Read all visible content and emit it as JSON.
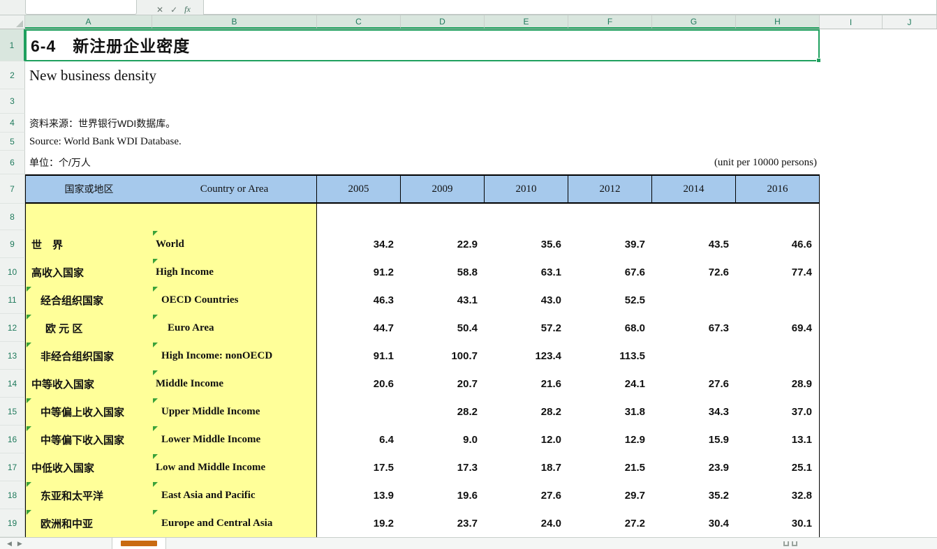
{
  "colors": {
    "selection_green": "#1FA05E",
    "header_blue": "#A6C9EC",
    "label_yellow": "#FFFF99",
    "flag_green": "#3AA23A",
    "header_text_teal": "#1F7A5C",
    "tab_accent_orange": "#C96A11"
  },
  "formula_bar": {
    "name_box_value": "",
    "cancel_icon": "✕",
    "confirm_icon": "✓",
    "fx_icon": "fx"
  },
  "grid": {
    "column_headers": [
      "A",
      "B",
      "C",
      "D",
      "E",
      "F",
      "G",
      "H",
      "I",
      "J"
    ],
    "row_numbers": [
      "1",
      "2",
      "3",
      "4",
      "5",
      "6",
      "7",
      "8",
      "9",
      "10",
      "11",
      "12",
      "13",
      "14",
      "15",
      "16",
      "17",
      "18",
      "19"
    ]
  },
  "doc": {
    "title_cn": "6-4　新注册企业密度",
    "title_en": "New business density",
    "source_cn": "资料来源：世界银行WDI数据库。",
    "source_en": "Source: World Bank WDI Database.",
    "unit_cn": "单位：个/万人",
    "unit_en": "(unit per 10000 persons)"
  },
  "table": {
    "header": {
      "country_cn": "国家或地区",
      "country_en": "Country or Area",
      "years": [
        "2005",
        "2009",
        "2010",
        "2012",
        "2014",
        "2016"
      ]
    },
    "rows": [
      {
        "cn": "世　界",
        "en": "World",
        "indent": 0,
        "flag_a": false,
        "flag_b": true,
        "values": [
          "34.2",
          "22.9",
          "35.6",
          "39.7",
          "43.5",
          "46.6"
        ]
      },
      {
        "cn": "高收入国家",
        "en": "High Income",
        "indent": 0,
        "flag_a": false,
        "flag_b": true,
        "values": [
          "91.2",
          "58.8",
          "63.1",
          "67.6",
          "72.6",
          "77.4"
        ]
      },
      {
        "cn": "经合组织国家",
        "en": "OECD Countries",
        "indent": 1,
        "flag_a": true,
        "flag_b": true,
        "values": [
          "46.3",
          "43.1",
          "43.0",
          "52.5",
          "",
          ""
        ]
      },
      {
        "cn": "欧 元 区",
        "en": "Euro Area",
        "indent": 2,
        "flag_a": true,
        "flag_b": true,
        "values": [
          "44.7",
          "50.4",
          "57.2",
          "68.0",
          "67.3",
          "69.4"
        ]
      },
      {
        "cn": "非经合组织国家",
        "en": "High Income: nonOECD",
        "indent": 1,
        "flag_a": true,
        "flag_b": true,
        "values": [
          "91.1",
          "100.7",
          "123.4",
          "113.5",
          "",
          ""
        ]
      },
      {
        "cn": "中等收入国家",
        "en": "Middle Income",
        "indent": 0,
        "flag_a": false,
        "flag_b": true,
        "values": [
          "20.6",
          "20.7",
          "21.6",
          "24.1",
          "27.6",
          "28.9"
        ]
      },
      {
        "cn": "中等偏上收入国家",
        "en": "Upper Middle Income",
        "indent": 1,
        "flag_a": true,
        "flag_b": true,
        "values": [
          "",
          "28.2",
          "28.2",
          "31.8",
          "34.3",
          "37.0"
        ]
      },
      {
        "cn": "中等偏下收入国家",
        "en": "Lower Middle Income",
        "indent": 1,
        "flag_a": true,
        "flag_b": true,
        "values": [
          "6.4",
          "9.0",
          "12.0",
          "12.9",
          "15.9",
          "13.1"
        ]
      },
      {
        "cn": "中低收入国家",
        "en": "Low and Middle Income",
        "indent": 0,
        "flag_a": false,
        "flag_b": true,
        "values": [
          "17.5",
          "17.3",
          "18.7",
          "21.5",
          "23.9",
          "25.1"
        ]
      },
      {
        "cn": "东亚和太平洋",
        "en": "East Asia and Pacific",
        "indent": 1,
        "flag_a": true,
        "flag_b": true,
        "values": [
          "13.9",
          "19.6",
          "27.6",
          "29.7",
          "35.2",
          "32.8"
        ]
      },
      {
        "cn": "欧洲和中亚",
        "en": "Europe and Central Asia",
        "indent": 1,
        "flag_a": true,
        "flag_b": true,
        "values": [
          "19.2",
          "23.7",
          "24.0",
          "27.2",
          "30.4",
          "30.1"
        ]
      }
    ]
  },
  "tabbar": {
    "nav_prev": "◀",
    "nav_next": "▶"
  }
}
